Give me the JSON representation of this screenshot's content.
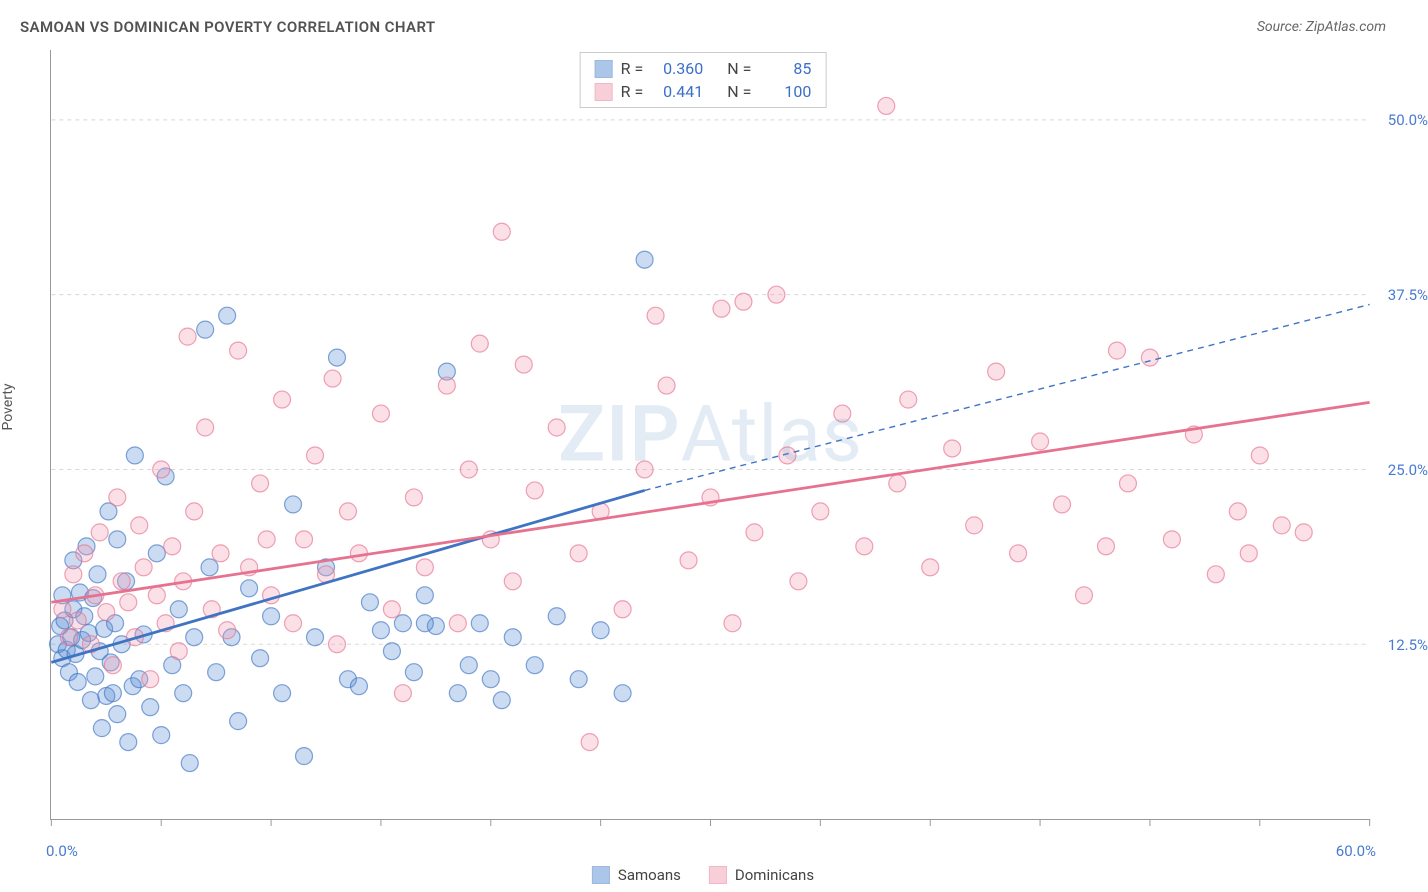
{
  "header": {
    "title": "SAMOAN VS DOMINICAN POVERTY CORRELATION CHART",
    "source": "Source: ZipAtlas.com"
  },
  "y_axis_label": "Poverty",
  "watermark": {
    "bold": "ZIP",
    "rest": "Atlas"
  },
  "chart": {
    "type": "scatter",
    "xlim": [
      0,
      60
    ],
    "ylim": [
      0,
      55
    ],
    "x_start_label": "0.0%",
    "x_end_label": "60.0%",
    "x_tick_positions": [
      0,
      5,
      10,
      15,
      20,
      25,
      30,
      35,
      40,
      45,
      50,
      55,
      60
    ],
    "y_gridlines": [
      {
        "v": 12.5,
        "label": "12.5%"
      },
      {
        "v": 25.0,
        "label": "25.0%"
      },
      {
        "v": 37.5,
        "label": "37.5%"
      },
      {
        "v": 50.0,
        "label": "50.0%"
      }
    ],
    "background_color": "#ffffff",
    "grid_color": "#d8d8d8",
    "grid_dash": "4 4",
    "axis_color": "#999999",
    "marker_radius": 8.5,
    "marker_stroke_width": 1.2,
    "marker_fill_opacity": 0.32,
    "series": [
      {
        "key": "samoans",
        "label": "Samoans",
        "color": "#5b8fd6",
        "stroke": "#3f74c2",
        "R": "0.360",
        "N": "85",
        "trend_solid": {
          "x1": 0,
          "y1": 11.2,
          "x2": 27,
          "y2": 23.5
        },
        "trend_dashed": {
          "x1": 27,
          "y1": 23.5,
          "x2": 60,
          "y2": 36.8
        },
        "points": [
          [
            0.3,
            12.5
          ],
          [
            0.4,
            13.8
          ],
          [
            0.5,
            11.5
          ],
          [
            0.6,
            14.2
          ],
          [
            0.7,
            12.1
          ],
          [
            0.8,
            10.5
          ],
          [
            0.9,
            13.0
          ],
          [
            1.0,
            15.0
          ],
          [
            1.1,
            11.8
          ],
          [
            1.2,
            9.8
          ],
          [
            1.3,
            16.2
          ],
          [
            1.4,
            12.8
          ],
          [
            1.5,
            14.5
          ],
          [
            1.6,
            19.5
          ],
          [
            1.7,
            13.3
          ],
          [
            1.8,
            8.5
          ],
          [
            1.9,
            15.8
          ],
          [
            2.0,
            10.2
          ],
          [
            2.1,
            17.5
          ],
          [
            2.2,
            12.0
          ],
          [
            2.3,
            6.5
          ],
          [
            2.4,
            13.6
          ],
          [
            2.5,
            8.8
          ],
          [
            2.6,
            22.0
          ],
          [
            2.7,
            11.2
          ],
          [
            2.8,
            9.0
          ],
          [
            2.9,
            14.0
          ],
          [
            3.0,
            7.5
          ],
          [
            3.2,
            12.5
          ],
          [
            3.4,
            17.0
          ],
          [
            3.5,
            5.5
          ],
          [
            3.7,
            9.5
          ],
          [
            3.8,
            26.0
          ],
          [
            4.0,
            10.0
          ],
          [
            4.2,
            13.2
          ],
          [
            4.5,
            8.0
          ],
          [
            4.8,
            19.0
          ],
          [
            5.0,
            6.0
          ],
          [
            5.2,
            24.5
          ],
          [
            5.5,
            11.0
          ],
          [
            5.8,
            15.0
          ],
          [
            6.0,
            9.0
          ],
          [
            6.3,
            4.0
          ],
          [
            6.5,
            13.0
          ],
          [
            7.0,
            35.0
          ],
          [
            7.2,
            18.0
          ],
          [
            7.5,
            10.5
          ],
          [
            8.0,
            36.0
          ],
          [
            8.2,
            13.0
          ],
          [
            8.5,
            7.0
          ],
          [
            9.0,
            16.5
          ],
          [
            9.5,
            11.5
          ],
          [
            10.0,
            14.5
          ],
          [
            10.5,
            9.0
          ],
          [
            11.0,
            22.5
          ],
          [
            11.5,
            4.5
          ],
          [
            12.0,
            13.0
          ],
          [
            12.5,
            18.0
          ],
          [
            13.0,
            33.0
          ],
          [
            13.5,
            10.0
          ],
          [
            14.0,
            9.5
          ],
          [
            14.5,
            15.5
          ],
          [
            15.0,
            13.5
          ],
          [
            15.5,
            12.0
          ],
          [
            16.0,
            14.0
          ],
          [
            16.5,
            10.5
          ],
          [
            17.0,
            16.0
          ],
          [
            17.5,
            13.8
          ],
          [
            18.0,
            32.0
          ],
          [
            18.5,
            9.0
          ],
          [
            19.0,
            11.0
          ],
          [
            19.5,
            14.0
          ],
          [
            20.0,
            10.0
          ],
          [
            20.5,
            8.5
          ],
          [
            21.0,
            13.0
          ],
          [
            22.0,
            11.0
          ],
          [
            23.0,
            14.5
          ],
          [
            24.0,
            10.0
          ],
          [
            25.0,
            13.5
          ],
          [
            26.0,
            9.0
          ],
          [
            27.0,
            40.0
          ],
          [
            17.0,
            14.0
          ],
          [
            3.0,
            20.0
          ],
          [
            1.0,
            18.5
          ],
          [
            0.5,
            16.0
          ]
        ]
      },
      {
        "key": "dominicans",
        "label": "Dominicans",
        "color": "#f2a0b4",
        "stroke": "#e6728f",
        "R": "0.441",
        "N": "100",
        "trend_solid": {
          "x1": 0,
          "y1": 15.5,
          "x2": 60,
          "y2": 29.8
        },
        "trend_dashed": null,
        "points": [
          [
            0.5,
            15.0
          ],
          [
            0.8,
            13.0
          ],
          [
            1.0,
            17.5
          ],
          [
            1.2,
            14.2
          ],
          [
            1.5,
            19.0
          ],
          [
            1.8,
            12.5
          ],
          [
            2.0,
            16.0
          ],
          [
            2.2,
            20.5
          ],
          [
            2.5,
            14.8
          ],
          [
            2.8,
            11.0
          ],
          [
            3.0,
            23.0
          ],
          [
            3.2,
            17.0
          ],
          [
            3.5,
            15.5
          ],
          [
            3.8,
            13.0
          ],
          [
            4.0,
            21.0
          ],
          [
            4.2,
            18.0
          ],
          [
            4.5,
            10.0
          ],
          [
            4.8,
            16.0
          ],
          [
            5.0,
            25.0
          ],
          [
            5.2,
            14.0
          ],
          [
            5.5,
            19.5
          ],
          [
            5.8,
            12.0
          ],
          [
            6.0,
            17.0
          ],
          [
            6.5,
            22.0
          ],
          [
            7.0,
            28.0
          ],
          [
            7.3,
            15.0
          ],
          [
            7.7,
            19.0
          ],
          [
            8.0,
            13.5
          ],
          [
            8.5,
            33.5
          ],
          [
            9.0,
            18.0
          ],
          [
            9.5,
            24.0
          ],
          [
            10.0,
            16.0
          ],
          [
            10.5,
            30.0
          ],
          [
            11.0,
            14.0
          ],
          [
            11.5,
            20.0
          ],
          [
            12.0,
            26.0
          ],
          [
            12.5,
            17.5
          ],
          [
            13.0,
            12.5
          ],
          [
            13.5,
            22.0
          ],
          [
            14.0,
            19.0
          ],
          [
            15.0,
            29.0
          ],
          [
            15.5,
            15.0
          ],
          [
            16.0,
            9.0
          ],
          [
            16.5,
            23.0
          ],
          [
            17.0,
            18.0
          ],
          [
            18.0,
            31.0
          ],
          [
            18.5,
            14.0
          ],
          [
            19.0,
            25.0
          ],
          [
            20.0,
            20.0
          ],
          [
            20.5,
            42.0
          ],
          [
            21.0,
            17.0
          ],
          [
            22.0,
            23.5
          ],
          [
            23.0,
            28.0
          ],
          [
            24.0,
            19.0
          ],
          [
            24.5,
            5.5
          ],
          [
            25.0,
            22.0
          ],
          [
            26.0,
            15.0
          ],
          [
            27.0,
            25.0
          ],
          [
            28.0,
            31.0
          ],
          [
            29.0,
            18.5
          ],
          [
            30.0,
            23.0
          ],
          [
            30.5,
            36.5
          ],
          [
            31.0,
            14.0
          ],
          [
            32.0,
            20.5
          ],
          [
            33.0,
            37.5
          ],
          [
            33.5,
            26.0
          ],
          [
            34.0,
            17.0
          ],
          [
            35.0,
            22.0
          ],
          [
            36.0,
            29.0
          ],
          [
            37.0,
            19.5
          ],
          [
            38.0,
            51.0
          ],
          [
            38.5,
            24.0
          ],
          [
            39.0,
            30.0
          ],
          [
            40.0,
            18.0
          ],
          [
            41.0,
            26.5
          ],
          [
            42.0,
            21.0
          ],
          [
            43.0,
            32.0
          ],
          [
            44.0,
            19.0
          ],
          [
            45.0,
            27.0
          ],
          [
            46.0,
            22.5
          ],
          [
            47.0,
            16.0
          ],
          [
            48.0,
            19.5
          ],
          [
            49.0,
            24.0
          ],
          [
            50.0,
            33.0
          ],
          [
            51.0,
            20.0
          ],
          [
            52.0,
            27.5
          ],
          [
            53.0,
            17.5
          ],
          [
            54.0,
            22.0
          ],
          [
            54.5,
            19.0
          ],
          [
            55.0,
            26.0
          ],
          [
            56.0,
            21.0
          ],
          [
            57.0,
            20.5
          ],
          [
            19.5,
            34.0
          ],
          [
            21.5,
            32.5
          ],
          [
            27.5,
            36.0
          ],
          [
            31.5,
            37.0
          ],
          [
            6.2,
            34.5
          ],
          [
            9.8,
            20.0
          ],
          [
            12.8,
            31.5
          ],
          [
            48.5,
            33.5
          ]
        ]
      }
    ]
  },
  "stats_legend_title": {
    "R": "R =",
    "N": "N ="
  },
  "bottom_legend": [
    {
      "key": "samoans",
      "label": "Samoans"
    },
    {
      "key": "dominicans",
      "label": "Dominicans"
    }
  ]
}
